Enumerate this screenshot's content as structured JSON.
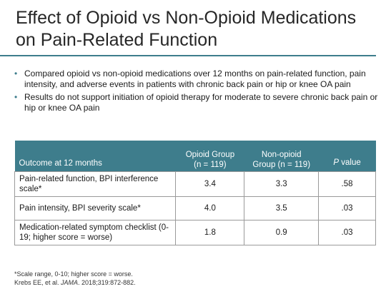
{
  "title": "Effect of Opioid vs Non-Opioid Medications on Pain-Related Function",
  "bullets": [
    "Compared opioid vs non-opioid medications over 12 months on pain-related function, pain intensity, and adverse events in patients with chronic back pain or hip or knee OA pain",
    "Results do not support initiation of opioid therapy for moderate to severe chronic back pain or hip or knee OA pain"
  ],
  "table": {
    "headers": {
      "outcome": "Outcome at 12 months",
      "opioid_line1": "Opioid Group",
      "opioid_line2": "(n = 119)",
      "nonopioid_line1": "Non-opioid",
      "nonopioid_line2": "Group (n = 119)",
      "pvalue_italic": "P",
      "pvalue_rest": " value"
    },
    "rows": [
      {
        "outcome": "Pain-related function, BPI interference scale*",
        "opioid": "3.4",
        "nonopioid": "3.3",
        "p": ".58"
      },
      {
        "outcome": "Pain intensity, BPI severity scale*",
        "opioid": "4.0",
        "nonopioid": "3.5",
        "p": ".03"
      },
      {
        "outcome": "Medication-related symptom checklist (0-19; higher score = worse)",
        "opioid": "1.8",
        "nonopioid": "0.9",
        "p": ".03"
      }
    ]
  },
  "footnote": {
    "line1": "*Scale range, 0-10; higher score = worse.",
    "line2_prefix": "Krebs EE, et al. ",
    "line2_journal": "JAMA",
    "line2_suffix": ". 2018;319:872-882."
  },
  "colors": {
    "accent": "#3e7d8c"
  }
}
